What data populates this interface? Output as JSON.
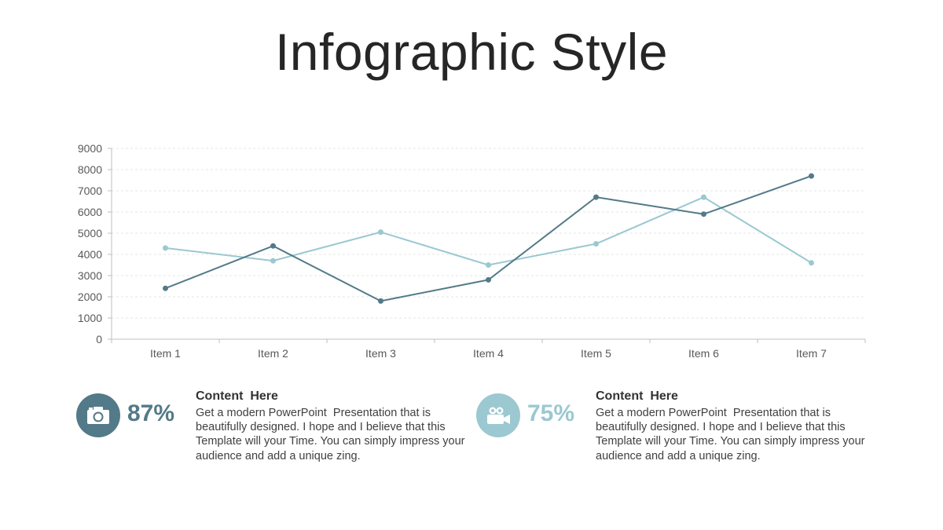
{
  "slide": {
    "title": "Infographic Style"
  },
  "colors": {
    "series_dark": "#537a88",
    "series_light": "#9bc8d1",
    "axis": "#bfbfbf",
    "grid": "#e6e6e6",
    "tick_text": "#595959"
  },
  "chart_data": {
    "type": "line",
    "categories": [
      "Item 1",
      "Item 2",
      "Item 3",
      "Item 4",
      "Item 5",
      "Item 6",
      "Item 7"
    ],
    "series": [
      {
        "values": [
          4300,
          3700,
          5050,
          3500,
          4500,
          6700,
          3600
        ],
        "color": "#9bc8d1"
      },
      {
        "values": [
          2400,
          4400,
          1800,
          2800,
          6700,
          5900,
          7700
        ],
        "color": "#537a88"
      }
    ],
    "ylim": [
      0,
      9000
    ],
    "yticks": [
      0,
      1000,
      2000,
      3000,
      4000,
      5000,
      6000,
      7000,
      8000,
      9000
    ],
    "grid": true,
    "legend": "none"
  },
  "cards": [
    {
      "icon": "camera-icon",
      "percent": "87%",
      "color": "#537a88",
      "heading": "Content  Here",
      "text": "Get a modern PowerPoint  Presentation that is\nbeautifully designed. I hope and I believe that this\nTemplate will your Time. You can simply impress your\naudience and add a unique zing."
    },
    {
      "icon": "video-camera-icon",
      "percent": "75%",
      "color": "#9bc8d1",
      "heading": "Content  Here",
      "text": "Get a modern PowerPoint  Presentation that is\nbeautifully designed. I hope and I believe that this\nTemplate will your Time. You can simply impress your\naudience and add a unique zing."
    }
  ]
}
